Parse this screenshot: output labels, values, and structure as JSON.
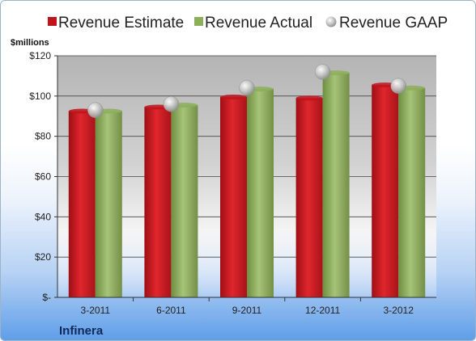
{
  "chart_data": {
    "type": "bar",
    "unit_label": "$millions",
    "company": "Infinera",
    "categories": [
      "3-2011",
      "6-2011",
      "9-2011",
      "12-2011",
      "3-2012"
    ],
    "series": [
      {
        "name": "Revenue Estimate",
        "kind": "bar",
        "color": "#c0141c",
        "values": [
          92.5,
          94.5,
          99.5,
          99,
          105.5
        ]
      },
      {
        "name": "Revenue Actual",
        "kind": "bar",
        "color": "#8caf5a",
        "values": [
          92.5,
          95.5,
          103.5,
          111.5,
          104
        ]
      },
      {
        "name": "Revenue GAAP",
        "kind": "marker",
        "color": "#b4b4b4",
        "values": [
          93,
          96,
          104,
          112,
          105
        ]
      }
    ],
    "y_ticks": [
      0,
      20,
      40,
      60,
      80,
      100,
      120
    ],
    "y_tick_labels": [
      "$-",
      "$20",
      "$40",
      "$60",
      "$80",
      "$100",
      "$120"
    ],
    "ylim": [
      0,
      120
    ],
    "grid": true,
    "legend_position": "top"
  }
}
